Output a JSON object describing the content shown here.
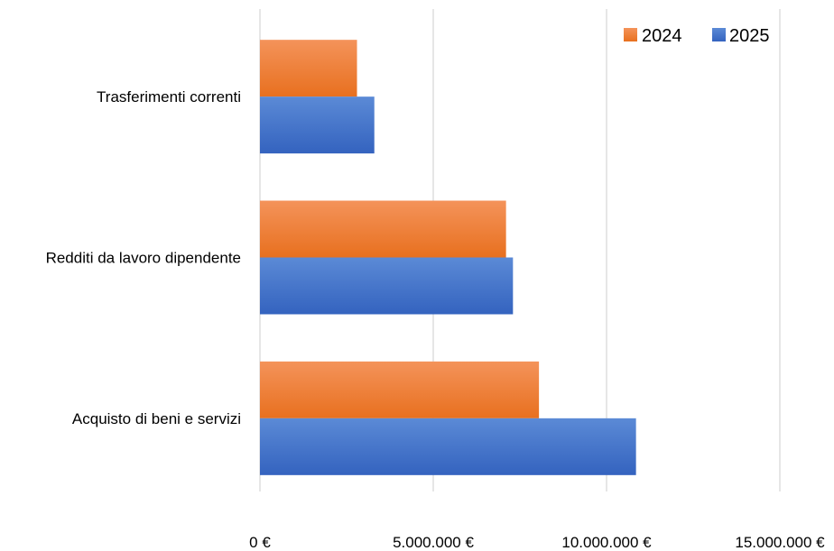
{
  "chart_data": {
    "type": "bar",
    "orientation": "horizontal",
    "title": "",
    "xlabel": "",
    "ylabel": "",
    "categories": [
      "Trasferimenti correnti",
      "Redditi da lavoro dipendente",
      "Acquisto di beni e servizi"
    ],
    "series": [
      {
        "name": "2024",
        "color": "#ed7d31",
        "values": [
          2800000,
          7100000,
          8050000
        ]
      },
      {
        "name": "2025",
        "color": "#4472c4",
        "values": [
          3300000,
          7300000,
          10850000
        ]
      }
    ],
    "xlim": [
      0,
      15000000
    ],
    "xticks": [
      0,
      5000000,
      10000000,
      15000000
    ],
    "xtick_labels": [
      "0 €",
      "5.000.000 €",
      "10.000.000 €",
      "15.000.000 €"
    ],
    "grid": "vertical",
    "legend_position": "top-right"
  }
}
